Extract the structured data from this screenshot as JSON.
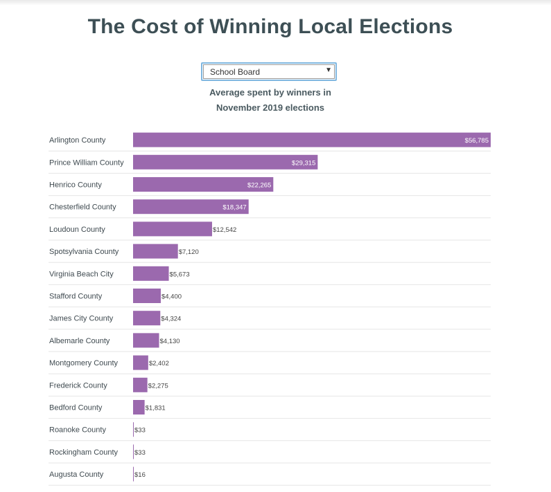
{
  "page": {
    "title": "The Cost of Winning Local Elections"
  },
  "selector": {
    "value": "School Board",
    "icon": "chevron-down-icon"
  },
  "subtitle": {
    "line1": "Average spent by winners in",
    "line2": "November 2019 elections"
  },
  "colors": {
    "bar": "#9b69ae",
    "title": "#3d4f55",
    "label": "#3f4a50",
    "separator": "#e6e6e6",
    "focus_border": "#7fb7e0"
  },
  "chart_data": {
    "type": "bar",
    "orientation": "horizontal",
    "title": "The Cost of Winning Local Elections",
    "categories": [
      "Arlington County",
      "Prince William County",
      "Henrico County",
      "Chesterfield County",
      "Loudoun County",
      "Spotsylvania County",
      "Virginia Beach City",
      "Stafford County",
      "James City County",
      "Albemarle County",
      "Montgomery County",
      "Frederick County",
      "Bedford County",
      "Roanoke County",
      "Rockingham County",
      "Augusta County"
    ],
    "values": [
      56785,
      29315,
      22265,
      18347,
      12542,
      7120,
      5673,
      4400,
      4324,
      4130,
      2402,
      2275,
      1831,
      33,
      33,
      16
    ],
    "value_labels": [
      "$56,785",
      "$29,315",
      "$22,265",
      "$18,347",
      "$12,542",
      "$7,120",
      "$5,673",
      "$4,400",
      "$4,324",
      "$4,130",
      "$2,402",
      "$2,275",
      "$1,831",
      "$33",
      "$33",
      "$16"
    ],
    "xlim": [
      0,
      56785
    ],
    "grid": false,
    "legend": "none"
  }
}
